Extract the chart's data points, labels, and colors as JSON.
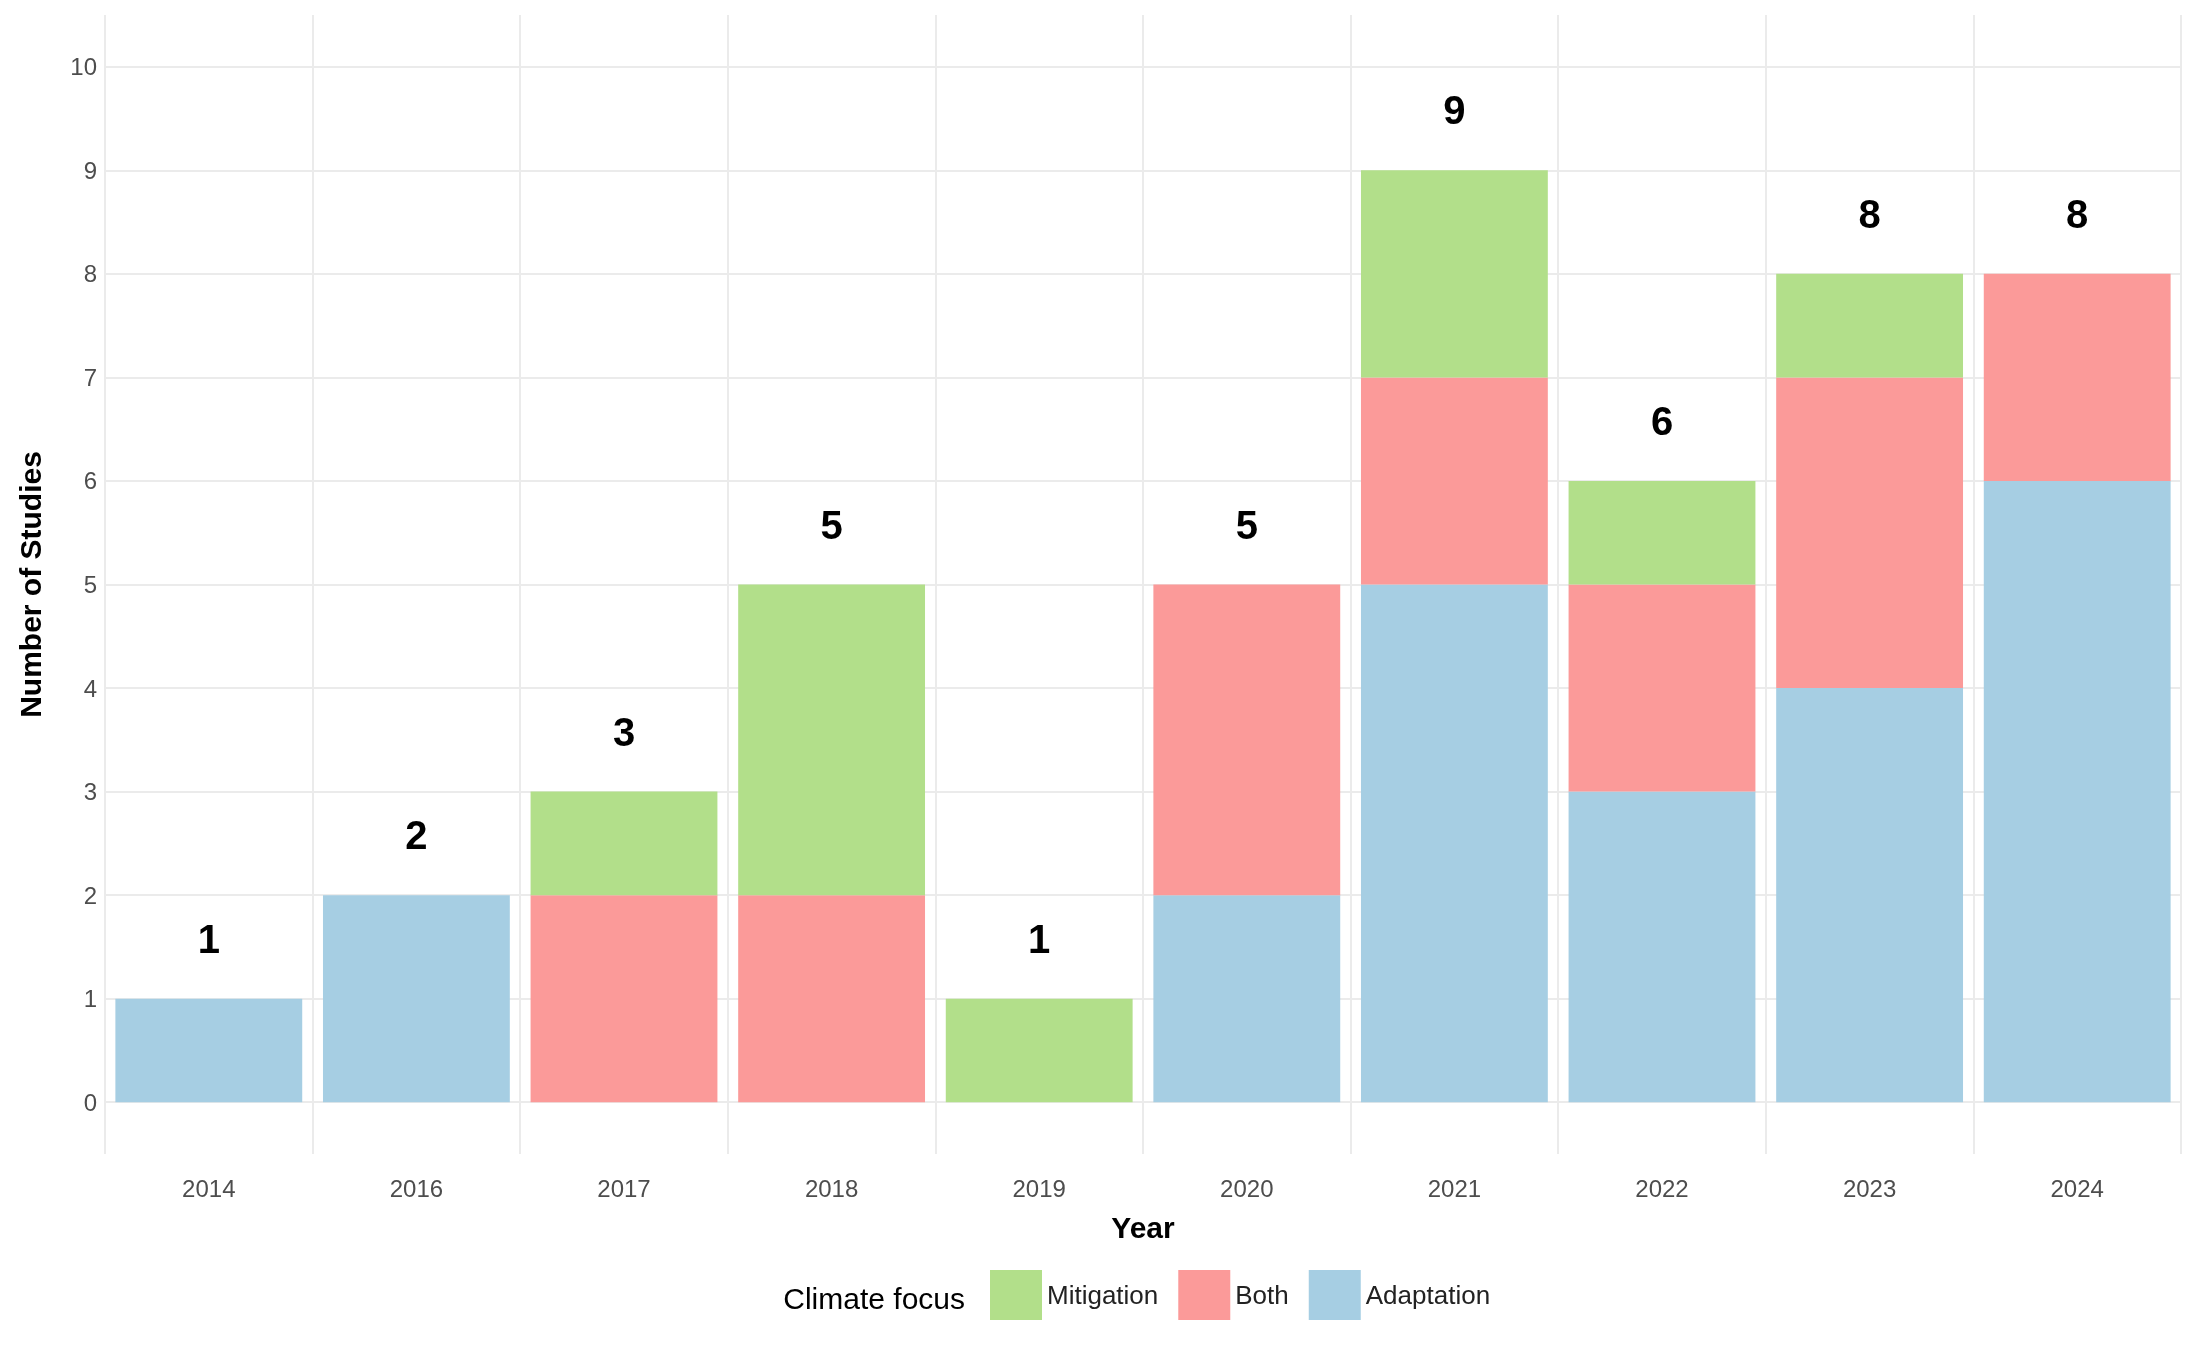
{
  "chart_data": {
    "type": "bar",
    "stacked": true,
    "xlabel": "Year",
    "ylabel": "Number of Studies",
    "legend_title": "Climate focus",
    "categories": [
      "2014",
      "2016",
      "2017",
      "2018",
      "2019",
      "2020",
      "2021",
      "2022",
      "2023",
      "2024"
    ],
    "series": [
      {
        "name": "Adaptation",
        "color": "#a6cee3",
        "values": [
          1,
          2,
          null,
          null,
          null,
          2,
          5,
          3,
          4,
          6
        ]
      },
      {
        "name": "Both",
        "color": "#fb9a99",
        "values": [
          null,
          null,
          2,
          2,
          null,
          3,
          2,
          2,
          3,
          2
        ]
      },
      {
        "name": "Mitigation",
        "color": "#b2df8a",
        "values": [
          null,
          null,
          1,
          3,
          1,
          null,
          2,
          1,
          1,
          null
        ]
      }
    ],
    "totals": [
      "1",
      "2",
      "3",
      "5",
      "1",
      "5",
      "9",
      "6",
      "8",
      "8"
    ],
    "ylim": [
      -0.5,
      10.5
    ],
    "yticks": [
      0,
      1,
      2,
      3,
      4,
      5,
      6,
      7,
      8,
      9,
      10
    ],
    "grid": true,
    "legend": "bottom"
  }
}
